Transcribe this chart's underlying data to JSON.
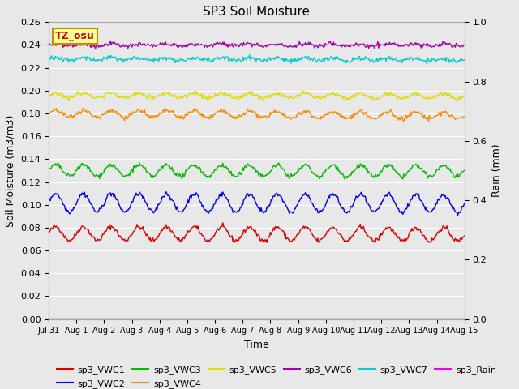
{
  "title": "SP3 Soil Moisture",
  "xlabel": "Time",
  "ylabel_left": "Soil Moisture (m3/m3)",
  "ylabel_right": "Rain (mm)",
  "annotation": "TZ_osu",
  "annotation_color": "#cc0000",
  "annotation_bg": "#ffff99",
  "annotation_border": "#cc8800",
  "xlim_days": 15,
  "ylim_left": [
    0.0,
    0.26
  ],
  "ylim_right": [
    0.0,
    1.0
  ],
  "yticks_left": [
    0.0,
    0.02,
    0.04,
    0.06,
    0.08,
    0.1,
    0.12,
    0.14,
    0.16,
    0.18,
    0.2,
    0.22,
    0.24,
    0.26
  ],
  "yticks_right": [
    0.0,
    0.2,
    0.4,
    0.6,
    0.8,
    1.0
  ],
  "xtick_labels": [
    "Jul 31",
    "Aug 1",
    "Aug 2",
    "Aug 3",
    "Aug 4",
    "Aug 5",
    "Aug 6",
    "Aug 7",
    "Aug 8",
    "Aug 9",
    "Aug 10",
    "Aug 11",
    "Aug 12",
    "Aug 13",
    "Aug 14",
    "Aug 15"
  ],
  "series": {
    "sp3_VWC1": {
      "color": "#dd0000",
      "base": 0.075,
      "amp": 0.006,
      "freq": 1.0,
      "noise": 0.001,
      "trend": -0.001
    },
    "sp3_VWC2": {
      "color": "#0000ee",
      "base": 0.102,
      "amp": 0.008,
      "freq": 1.0,
      "noise": 0.001,
      "trend": -0.001
    },
    "sp3_VWC3": {
      "color": "#00bb00",
      "base": 0.13,
      "amp": 0.005,
      "freq": 1.0,
      "noise": 0.001,
      "trend": -0.0005
    },
    "sp3_VWC4": {
      "color": "#ff8800",
      "base": 0.18,
      "amp": 0.003,
      "freq": 1.0,
      "noise": 0.001,
      "trend": -0.002
    },
    "sp3_VWC5": {
      "color": "#dddd00",
      "base": 0.196,
      "amp": 0.002,
      "freq": 1.0,
      "noise": 0.001,
      "trend": -0.001
    },
    "sp3_VWC6": {
      "color": "#aa00aa",
      "base": 0.24,
      "amp": 0.001,
      "freq": 1.0,
      "noise": 0.001,
      "trend": 0.0
    },
    "sp3_VWC7": {
      "color": "#00cccc",
      "base": 0.228,
      "amp": 0.001,
      "freq": 1.0,
      "noise": 0.001,
      "trend": -0.001
    },
    "sp3_Rain": {
      "color": "#ee00ee",
      "base": 0.0,
      "amp": 0.0,
      "freq": 0.0,
      "noise": 0.0,
      "trend": 0.0
    }
  },
  "legend_order": [
    "sp3_VWC1",
    "sp3_VWC2",
    "sp3_VWC3",
    "sp3_VWC4",
    "sp3_VWC5",
    "sp3_VWC6",
    "sp3_VWC7",
    "sp3_Rain"
  ],
  "background_color": "#e8e8e8",
  "grid_color": "#ffffff",
  "n_points": 500
}
